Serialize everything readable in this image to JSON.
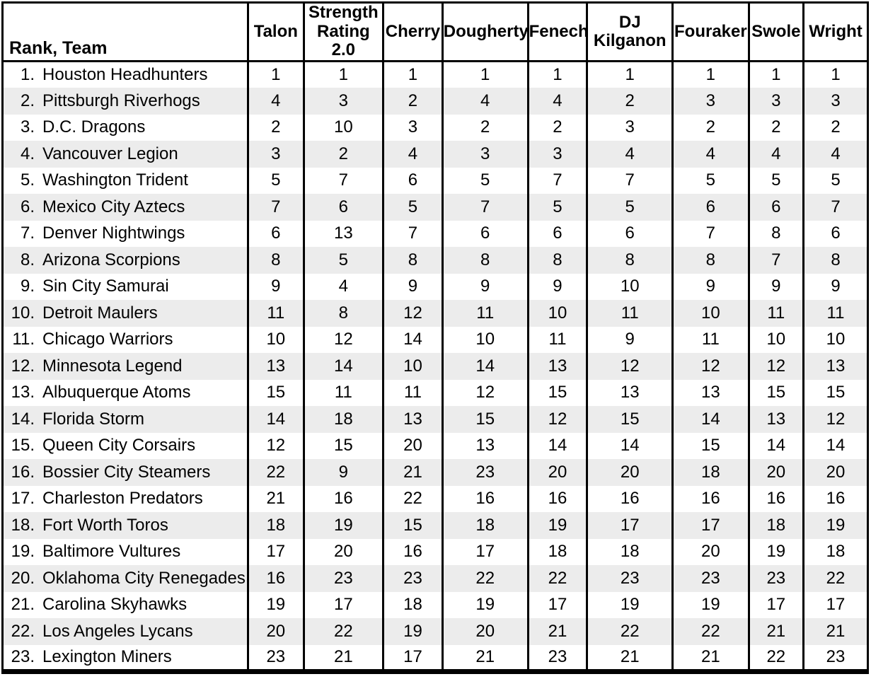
{
  "table": {
    "corner_header": "Rank, Team",
    "columns": [
      "Talon",
      "Strength Rating 2.0",
      "Cherry",
      "Dougherty",
      "Fenech",
      "DJ Kilganon",
      "Fouraker",
      "Swole",
      "Wright"
    ],
    "rows": [
      {
        "rank": "1.",
        "team": "Houston Headhunters",
        "ratings": [
          1,
          1,
          1,
          1,
          1,
          1,
          1,
          1,
          1
        ]
      },
      {
        "rank": "2.",
        "team": "Pittsburgh Riverhogs",
        "ratings": [
          4,
          3,
          2,
          4,
          4,
          2,
          3,
          3,
          3
        ]
      },
      {
        "rank": "3.",
        "team": "D.C. Dragons",
        "ratings": [
          2,
          10,
          3,
          2,
          2,
          3,
          2,
          2,
          2
        ]
      },
      {
        "rank": "4.",
        "team": "Vancouver Legion",
        "ratings": [
          3,
          2,
          4,
          3,
          3,
          4,
          4,
          4,
          4
        ]
      },
      {
        "rank": "5.",
        "team": "Washington Trident",
        "ratings": [
          5,
          7,
          6,
          5,
          7,
          7,
          5,
          5,
          5
        ]
      },
      {
        "rank": "6.",
        "team": "Mexico City Aztecs",
        "ratings": [
          7,
          6,
          5,
          7,
          5,
          5,
          6,
          6,
          7
        ]
      },
      {
        "rank": "7.",
        "team": "Denver Nightwings",
        "ratings": [
          6,
          13,
          7,
          6,
          6,
          6,
          7,
          8,
          6
        ]
      },
      {
        "rank": "8.",
        "team": "Arizona Scorpions",
        "ratings": [
          8,
          5,
          8,
          8,
          8,
          8,
          8,
          7,
          8
        ]
      },
      {
        "rank": "9.",
        "team": "Sin City Samurai",
        "ratings": [
          9,
          4,
          9,
          9,
          9,
          10,
          9,
          9,
          9
        ]
      },
      {
        "rank": "10.",
        "team": "Detroit Maulers",
        "ratings": [
          11,
          8,
          12,
          11,
          10,
          11,
          10,
          11,
          11
        ]
      },
      {
        "rank": "11.",
        "team": "Chicago Warriors",
        "ratings": [
          10,
          12,
          14,
          10,
          11,
          9,
          11,
          10,
          10
        ]
      },
      {
        "rank": "12.",
        "team": "Minnesota Legend",
        "ratings": [
          13,
          14,
          10,
          14,
          13,
          12,
          12,
          12,
          13
        ]
      },
      {
        "rank": "13.",
        "team": "Albuquerque Atoms",
        "ratings": [
          15,
          11,
          11,
          12,
          15,
          13,
          13,
          15,
          15
        ]
      },
      {
        "rank": "14.",
        "team": "Florida Storm",
        "ratings": [
          14,
          18,
          13,
          15,
          12,
          15,
          14,
          13,
          12
        ]
      },
      {
        "rank": "15.",
        "team": "Queen City Corsairs",
        "ratings": [
          12,
          15,
          20,
          13,
          14,
          14,
          15,
          14,
          14
        ]
      },
      {
        "rank": "16.",
        "team": "Bossier City Steamers",
        "ratings": [
          22,
          9,
          21,
          23,
          20,
          20,
          18,
          20,
          20
        ]
      },
      {
        "rank": "17.",
        "team": "Charleston Predators",
        "ratings": [
          21,
          16,
          22,
          16,
          16,
          16,
          16,
          16,
          16
        ]
      },
      {
        "rank": "18.",
        "team": "Fort Worth Toros",
        "ratings": [
          18,
          19,
          15,
          18,
          19,
          17,
          17,
          18,
          19
        ]
      },
      {
        "rank": "19.",
        "team": "Baltimore Vultures",
        "ratings": [
          17,
          20,
          16,
          17,
          18,
          18,
          20,
          19,
          18
        ]
      },
      {
        "rank": "20.",
        "team": "Oklahoma City Renegades",
        "ratings": [
          16,
          23,
          23,
          22,
          22,
          23,
          23,
          23,
          22
        ]
      },
      {
        "rank": "21.",
        "team": "Carolina Skyhawks",
        "ratings": [
          19,
          17,
          18,
          19,
          17,
          19,
          19,
          17,
          17
        ]
      },
      {
        "rank": "22.",
        "team": "Los Angeles Lycans",
        "ratings": [
          20,
          22,
          19,
          20,
          21,
          22,
          22,
          21,
          21
        ]
      },
      {
        "rank": "23.",
        "team": "Lexington Miners",
        "ratings": [
          23,
          21,
          17,
          21,
          23,
          21,
          21,
          22,
          23
        ]
      }
    ]
  },
  "colors": {
    "border": "#000000",
    "text": "#000000",
    "row_stripe": "#ececec",
    "background": "#ffffff"
  },
  "chart_data": {
    "type": "table",
    "title": "Team power rankings by rater",
    "columns": [
      "Rank, Team",
      "Talon",
      "Strength Rating 2.0",
      "Cherry",
      "Dougherty",
      "Fenech",
      "DJ Kilganon",
      "Fouraker",
      "Swole",
      "Wright"
    ],
    "rows": [
      [
        "1. Houston Headhunters",
        1,
        1,
        1,
        1,
        1,
        1,
        1,
        1,
        1
      ],
      [
        "2. Pittsburgh Riverhogs",
        4,
        3,
        2,
        4,
        4,
        2,
        3,
        3,
        3
      ],
      [
        "3. D.C. Dragons",
        2,
        10,
        3,
        2,
        2,
        3,
        2,
        2,
        2
      ],
      [
        "4. Vancouver Legion",
        3,
        2,
        4,
        3,
        3,
        4,
        4,
        4,
        4
      ],
      [
        "5. Washington Trident",
        5,
        7,
        6,
        5,
        7,
        7,
        5,
        5,
        5
      ],
      [
        "6. Mexico City Aztecs",
        7,
        6,
        5,
        7,
        5,
        5,
        6,
        6,
        7
      ],
      [
        "7. Denver Nightwings",
        6,
        13,
        7,
        6,
        6,
        6,
        7,
        8,
        6
      ],
      [
        "8. Arizona Scorpions",
        8,
        5,
        8,
        8,
        8,
        8,
        8,
        7,
        8
      ],
      [
        "9. Sin City Samurai",
        9,
        4,
        9,
        9,
        9,
        10,
        9,
        9,
        9
      ],
      [
        "10. Detroit Maulers",
        11,
        8,
        12,
        11,
        10,
        11,
        10,
        11,
        11
      ],
      [
        "11. Chicago Warriors",
        10,
        12,
        14,
        10,
        11,
        9,
        11,
        10,
        10
      ],
      [
        "12. Minnesota Legend",
        13,
        14,
        10,
        14,
        13,
        12,
        12,
        12,
        13
      ],
      [
        "13. Albuquerque Atoms",
        15,
        11,
        11,
        12,
        15,
        13,
        13,
        15,
        15
      ],
      [
        "14. Florida Storm",
        14,
        18,
        13,
        15,
        12,
        15,
        14,
        13,
        12
      ],
      [
        "15. Queen City Corsairs",
        12,
        15,
        20,
        13,
        14,
        14,
        15,
        14,
        14
      ],
      [
        "16. Bossier City Steamers",
        22,
        9,
        21,
        23,
        20,
        20,
        18,
        20,
        20
      ],
      [
        "17. Charleston Predators",
        21,
        16,
        22,
        16,
        16,
        16,
        16,
        16,
        16
      ],
      [
        "18. Fort Worth Toros",
        18,
        19,
        15,
        18,
        19,
        17,
        17,
        18,
        19
      ],
      [
        "19. Baltimore Vultures",
        17,
        20,
        16,
        17,
        18,
        18,
        20,
        19,
        18
      ],
      [
        "20. Oklahoma City Renegades",
        16,
        23,
        23,
        22,
        22,
        23,
        23,
        23,
        22
      ],
      [
        "21. Carolina Skyhawks",
        19,
        17,
        18,
        19,
        17,
        19,
        19,
        17,
        17
      ],
      [
        "22. Los Angeles Lycans",
        20,
        22,
        19,
        20,
        21,
        22,
        22,
        21,
        21
      ],
      [
        "23. Lexington Miners",
        23,
        21,
        17,
        21,
        23,
        21,
        21,
        22,
        23
      ]
    ]
  }
}
